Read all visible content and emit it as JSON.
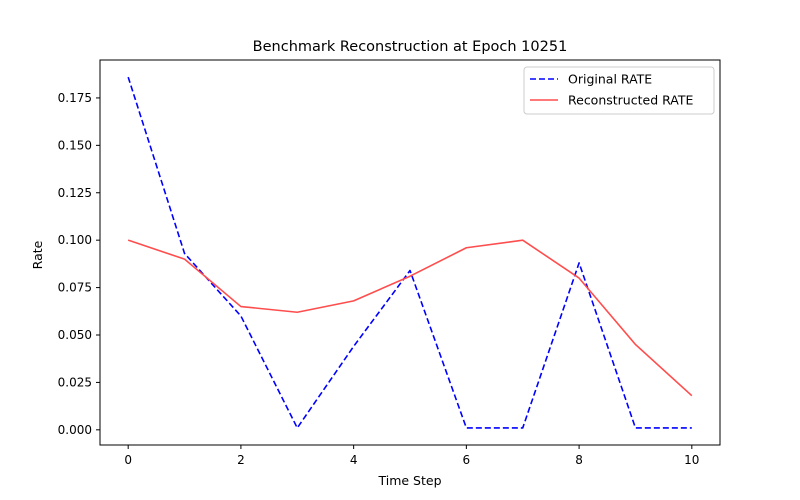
{
  "chart_data": {
    "type": "line",
    "title": "Benchmark Reconstruction at Epoch 10251",
    "xlabel": "Time Step",
    "ylabel": "Rate",
    "xlim": [
      -0.5,
      10.5
    ],
    "ylim": [
      -0.008,
      0.195
    ],
    "xticks": [
      0,
      2,
      4,
      6,
      8,
      10
    ],
    "yticks": [
      0.0,
      0.025,
      0.05,
      0.075,
      0.1,
      0.125,
      0.15,
      0.175
    ],
    "xtick_labels": [
      "0",
      "2",
      "4",
      "6",
      "8",
      "10"
    ],
    "ytick_labels": [
      "0.000",
      "0.025",
      "0.050",
      "0.075",
      "0.100",
      "0.125",
      "0.150",
      "0.175"
    ],
    "grid": false,
    "legend_position": "top-right",
    "x": [
      0,
      1,
      2,
      3,
      4,
      5,
      6,
      7,
      8,
      9,
      10
    ],
    "series": [
      {
        "name": "Original RATE",
        "color": "#0000ff",
        "style": "dashed",
        "values": [
          0.186,
          0.093,
          0.06,
          0.001,
          0.044,
          0.084,
          0.001,
          0.001,
          0.088,
          0.001,
          0.001
        ]
      },
      {
        "name": "Reconstructed RATE",
        "color": "#ff4d4d",
        "style": "solid",
        "values": [
          0.1,
          0.09,
          0.065,
          0.062,
          0.068,
          0.081,
          0.096,
          0.1,
          0.08,
          0.045,
          0.018
        ]
      }
    ]
  }
}
